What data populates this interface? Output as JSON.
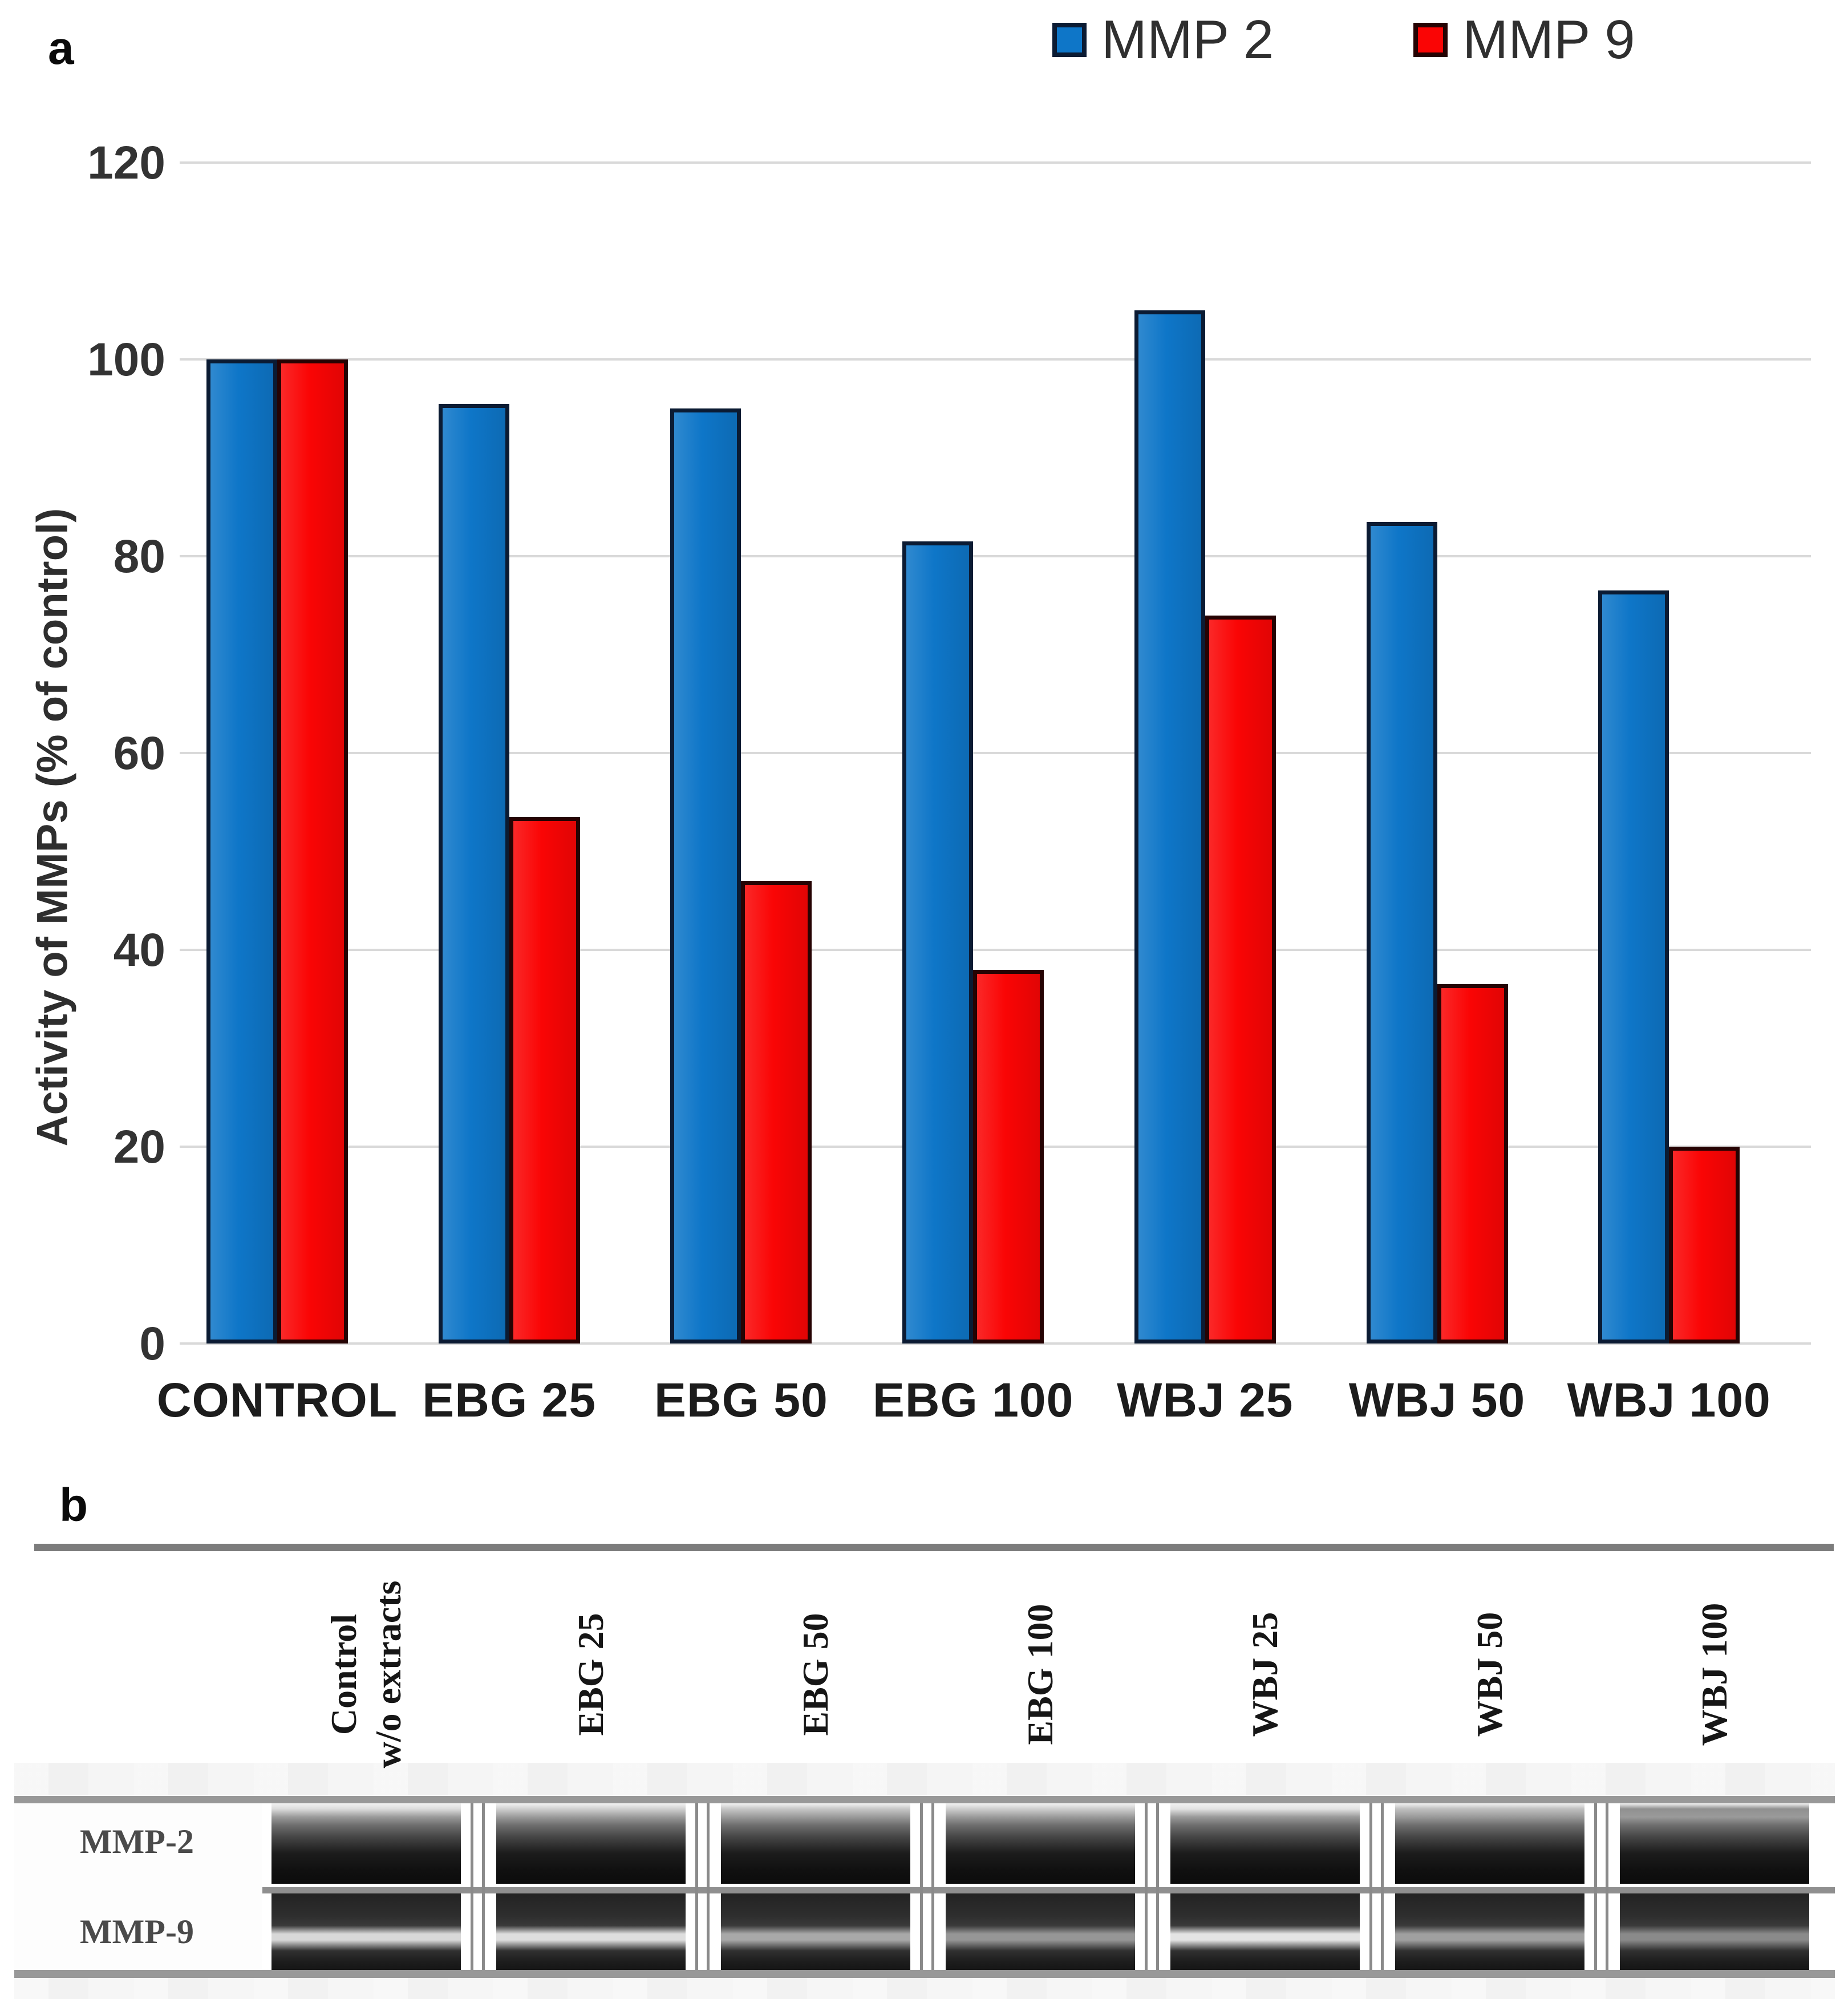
{
  "figure": {
    "panel_a_label": "a",
    "panel_b_label": "b"
  },
  "chart_data": {
    "type": "bar",
    "title": "",
    "categories": [
      "CONTROL",
      "EBG 25",
      "EBG 50",
      "EBG 100",
      "WBJ 25",
      "WBJ 50",
      "WBJ 100"
    ],
    "series": [
      {
        "name": "MMP 2",
        "color": "#0e76c8",
        "border_color": "#0b1b33",
        "values": [
          100,
          95.5,
          95,
          81.5,
          105,
          83.5,
          76.5
        ]
      },
      {
        "name": "MMP 9",
        "color": "#fa0505",
        "border_color": "#260303",
        "values": [
          100,
          53.5,
          47,
          38,
          74,
          36.5,
          20
        ]
      }
    ],
    "xlabel": "",
    "ylabel": "Activity of MMPs (% of control)",
    "ylim": [
      0,
      120
    ],
    "yticks": [
      0,
      20,
      40,
      60,
      80,
      100,
      120
    ],
    "grid": true,
    "gridline_color": "#d9d9d9",
    "legend_position": "top-right"
  },
  "panel_b": {
    "row_labels": [
      "MMP-2",
      "MMP-9"
    ],
    "lanes": [
      {
        "label_lines": [
          "Control",
          "w/o extracts"
        ],
        "mmp2_top": "#dcdcdc",
        "mmp9_band": "#d8d8d8"
      },
      {
        "label_lines": [
          "EBG 25"
        ],
        "mmp2_top": "#cfcfcf",
        "mmp9_band": "#dedede"
      },
      {
        "label_lines": [
          "EBG 50"
        ],
        "mmp2_top": "#c6c6c6",
        "mmp9_band": "#a8a8a8"
      },
      {
        "label_lines": [
          "EBG 100"
        ],
        "mmp2_top": "#cdcdcd",
        "mmp9_band": "#969696"
      },
      {
        "label_lines": [
          "WBJ 25"
        ],
        "mmp2_top": "#e2e2e2",
        "mmp9_band": "#e4e4e4"
      },
      {
        "label_lines": [
          "WBJ 50"
        ],
        "mmp2_top": "#bfbfbf",
        "mmp9_band": "#a0a0a0"
      },
      {
        "label_lines": [
          "WBJ 100"
        ],
        "mmp2_top": "#909090",
        "mmp9_band": "#8a8a8a"
      }
    ]
  }
}
